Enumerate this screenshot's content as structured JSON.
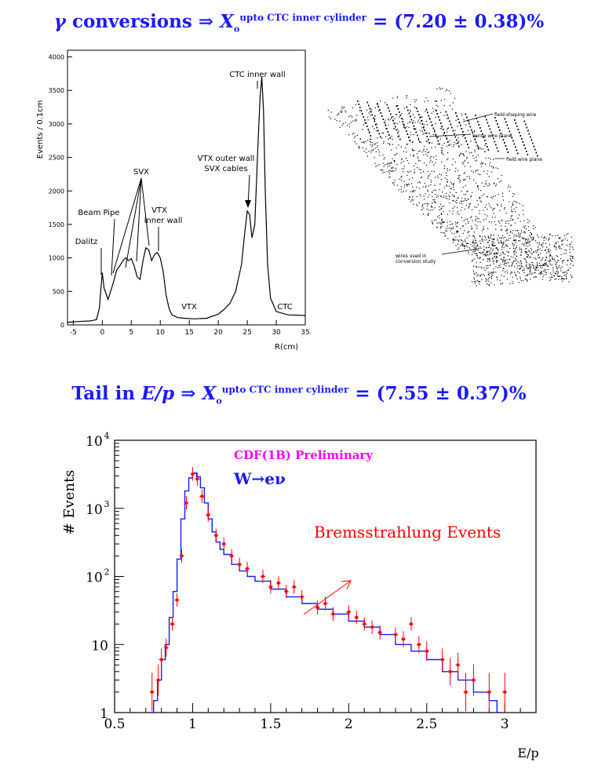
{
  "headings": {
    "top": {
      "gamma": "γ",
      "lead": "conversions ⇒",
      "X": "X",
      "sub": "o",
      "sup": "upto CTC inner cylinder",
      "value": "= (7.20 ± 0.38)%"
    },
    "middle": {
      "lead": "Tail in",
      "ep": "E/p",
      "arrow": "⇒",
      "X": "X",
      "sub": "o",
      "sup": "upto CTC inner cylinder",
      "value": "= (7.55 ± 0.37)%"
    }
  },
  "diagram": {
    "labels": [
      "field-shaping wire",
      "sense wire plane",
      "field wire plane",
      "wires used in",
      "conversion study"
    ]
  },
  "chart_data": [
    {
      "type": "line",
      "xlabel": "R(cm)",
      "ylabel": "Events / 0.1cm",
      "xlim": [
        -6,
        35
      ],
      "ylim": [
        0,
        4100
      ],
      "xticks": [
        "-5",
        "0",
        "5",
        "10",
        "15",
        "20",
        "25",
        "30",
        "35"
      ],
      "yticks": [
        "0",
        "500",
        "1000",
        "1500",
        "2000",
        "2500",
        "3000",
        "3500",
        "4000"
      ],
      "x": [
        -6,
        -4,
        -2,
        -1,
        -0.5,
        0,
        0.3,
        1,
        1.8,
        2.5,
        3,
        3.5,
        4,
        4.5,
        5,
        5.5,
        6,
        6.5,
        7,
        7.5,
        8,
        8.5,
        9,
        9.5,
        10,
        10.5,
        11,
        11.5,
        12,
        13,
        14,
        16,
        18,
        20,
        21,
        22,
        23,
        24,
        24.6,
        25,
        25.4,
        25.8,
        26.3,
        26.8,
        27.2,
        27.5,
        27.8,
        28.1,
        28.5,
        29,
        30,
        32,
        35
      ],
      "y": [
        40,
        50,
        60,
        80,
        250,
        780,
        550,
        380,
        600,
        820,
        880,
        950,
        1000,
        960,
        990,
        880,
        720,
        680,
        950,
        1150,
        1120,
        960,
        1050,
        1080,
        1000,
        800,
        450,
        250,
        150,
        110,
        100,
        90,
        100,
        160,
        230,
        320,
        500,
        900,
        1400,
        1700,
        1650,
        1300,
        1500,
        2600,
        3400,
        3700,
        3200,
        2000,
        900,
        400,
        200,
        150,
        140
      ],
      "annotations": [
        "CTC inner wall",
        "VTX outer wall",
        "SVX cables",
        "SVX",
        "VTX",
        "inner wall",
        "Beam Pipe",
        "Dalitz",
        "VTX",
        "CTC"
      ]
    },
    {
      "type": "line",
      "xlabel": "E/p",
      "ylabel": "# Events",
      "xlim": [
        0.5,
        3.2
      ],
      "ylim": [
        1,
        10000
      ],
      "log_y": true,
      "xticks": [
        "0.5",
        "1",
        "1.5",
        "2",
        "2.5",
        "3"
      ],
      "ytick_base": "10",
      "ytick_exponents": [
        "4",
        "3",
        "2"
      ],
      "yticks_plain": [
        "10",
        "1"
      ],
      "annotations": [
        "CDF(1B) Preliminary",
        "W→eν",
        "Bremsstrahlung Events"
      ],
      "series": [
        {
          "style": "histogram",
          "x": [
            0.725,
            0.75,
            0.775,
            0.8,
            0.825,
            0.85,
            0.875,
            0.9,
            0.925,
            0.95,
            0.975,
            1.0,
            1.025,
            1.05,
            1.075,
            1.1,
            1.125,
            1.15,
            1.175,
            1.2,
            1.25,
            1.3,
            1.35,
            1.4,
            1.5,
            1.6,
            1.7,
            1.8,
            1.9,
            2.0,
            2.1,
            2.2,
            2.3,
            2.4,
            2.5,
            2.6,
            2.7,
            2.8,
            2.9,
            2.95
          ],
          "values": [
            1,
            1.5,
            3,
            6,
            10,
            25,
            60,
            180,
            700,
            1800,
            2800,
            3300,
            2900,
            2000,
            1200,
            700,
            450,
            320,
            250,
            210,
            150,
            120,
            100,
            85,
            65,
            50,
            40,
            33,
            28,
            22,
            18,
            14,
            10,
            8,
            6,
            4,
            3,
            2,
            1.5,
            1
          ]
        },
        {
          "style": "points-with-errors",
          "x": [
            0.74,
            0.78,
            0.8,
            0.83,
            0.87,
            0.9,
            0.93,
            0.96,
            1.0,
            1.03,
            1.06,
            1.1,
            1.15,
            1.2,
            1.25,
            1.3,
            1.35,
            1.45,
            1.5,
            1.55,
            1.6,
            1.65,
            1.7,
            1.8,
            1.85,
            1.9,
            2.0,
            2.05,
            2.1,
            2.15,
            2.2,
            2.3,
            2.35,
            2.4,
            2.45,
            2.5,
            2.6,
            2.65,
            2.7,
            2.75,
            2.8,
            2.9,
            3.0
          ],
          "values": [
            2,
            3,
            6,
            9,
            20,
            45,
            200,
            1200,
            3200,
            2700,
            1500,
            800,
            400,
            300,
            200,
            150,
            130,
            100,
            70,
            80,
            60,
            70,
            50,
            35,
            40,
            28,
            30,
            25,
            20,
            18,
            15,
            14,
            12,
            20,
            10,
            8,
            6,
            4,
            5,
            2,
            3,
            2,
            2
          ]
        }
      ]
    }
  ]
}
